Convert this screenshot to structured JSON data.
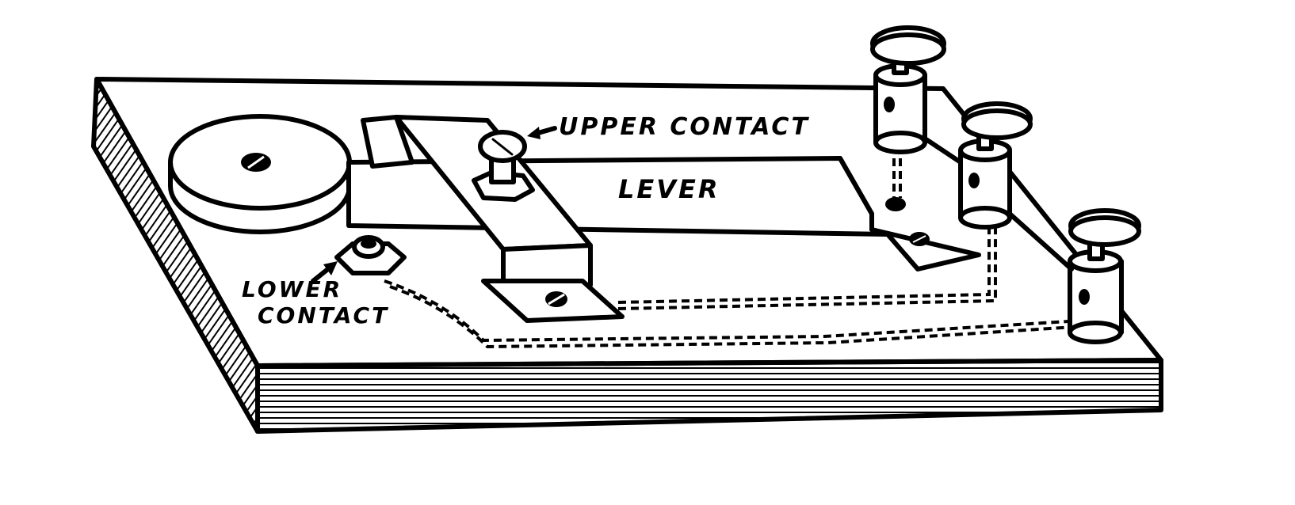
{
  "labels": {
    "upper_contact": "UPPER CONTACT",
    "lever": "LEVER",
    "lower_contact_line1": "LOWER",
    "lower_contact_line2": "CONTACT"
  },
  "colors": {
    "ink": "#000000",
    "paper": "#ffffff"
  }
}
